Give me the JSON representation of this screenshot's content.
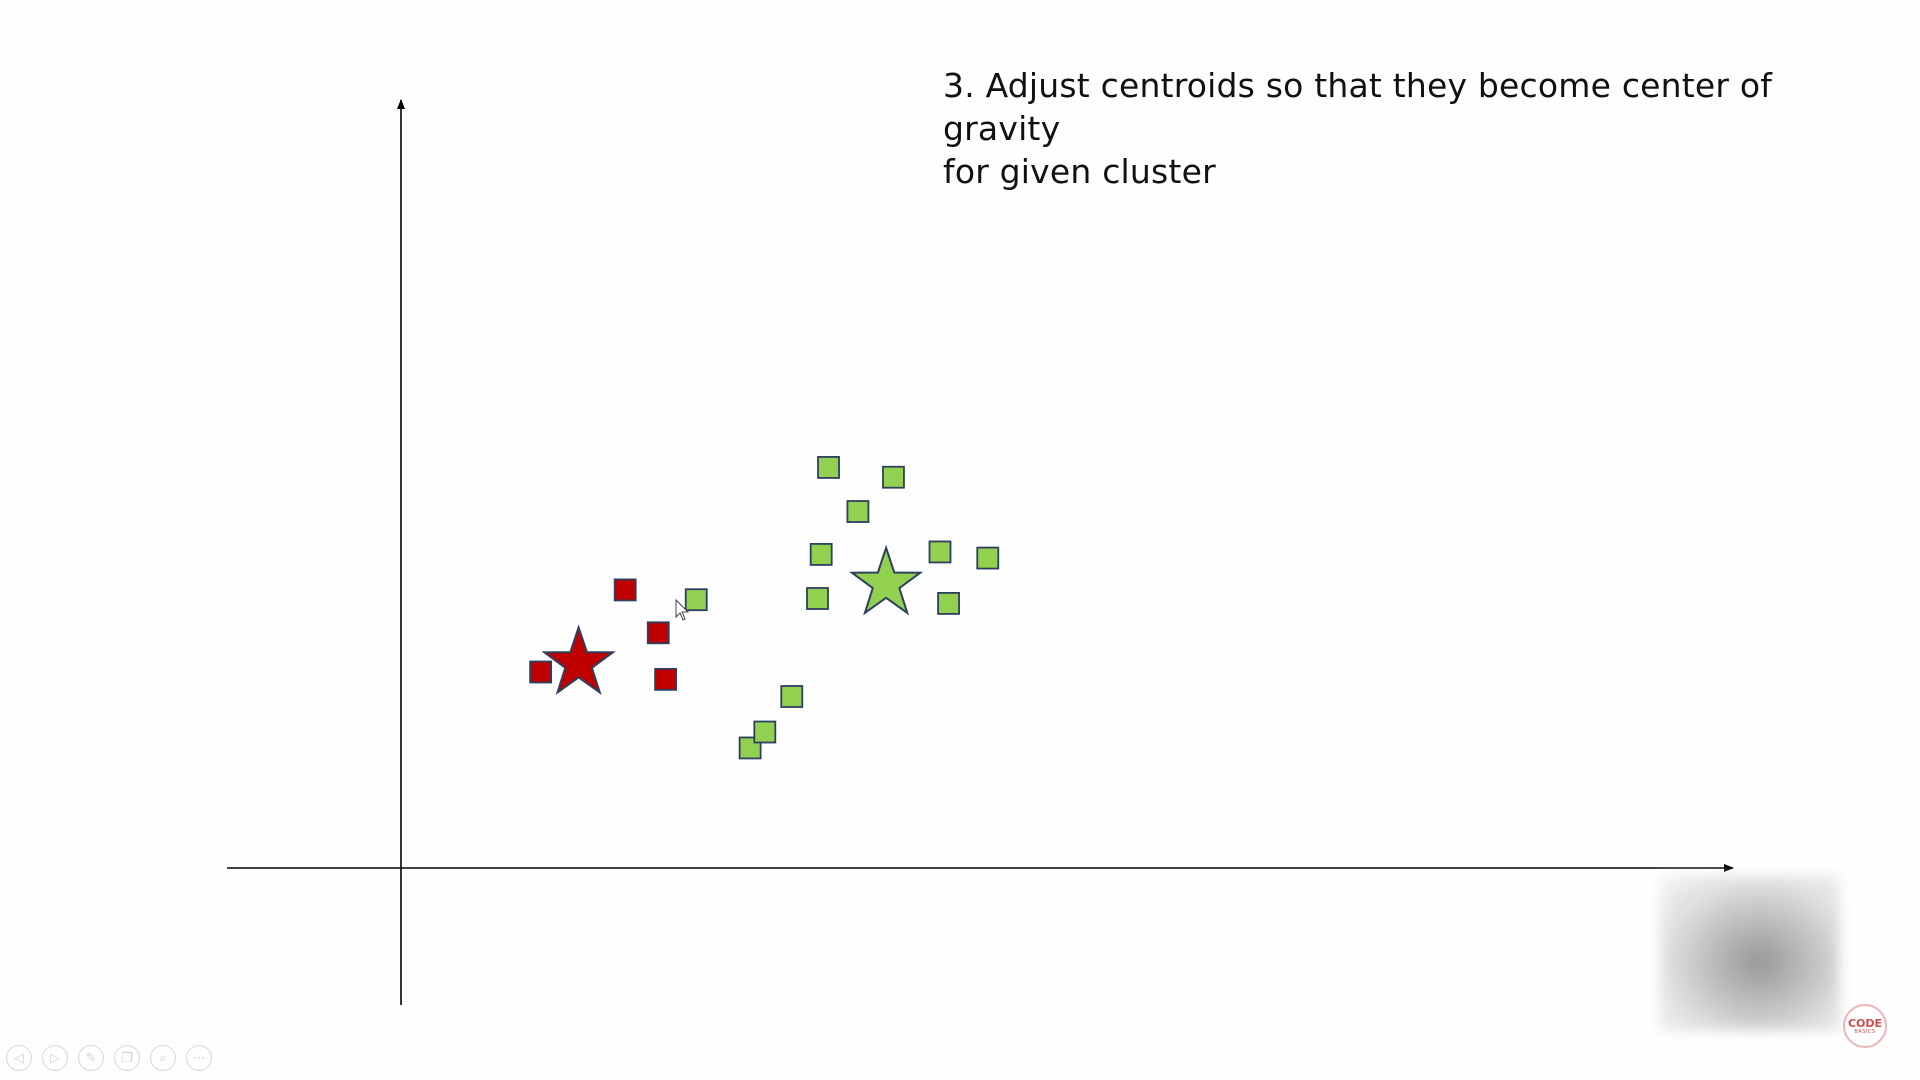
{
  "slide": {
    "title_line1": "3. Adjust centroids so that they become center of gravity",
    "title_line2": "for given cluster"
  },
  "colors": {
    "red_fill": "#c00000",
    "green_fill": "#92d050",
    "marker_stroke": "#2f3f5f",
    "axis": "#000000"
  },
  "chart_data": {
    "type": "scatter",
    "title": "",
    "xlabel": "",
    "ylabel": "",
    "xlim": [
      -100,
      750
    ],
    "ylim": [
      -75,
      425
    ],
    "grid": false,
    "series": [
      {
        "marker": "square",
        "color": "#c00000",
        "points": [
          [
            114,
            160
          ],
          [
            183,
            227
          ],
          [
            210,
            192
          ],
          [
            216,
            154
          ]
        ]
      },
      {
        "marker": "square",
        "color": "#92d050",
        "points": [
          [
            241,
            219
          ],
          [
            285,
            98
          ],
          [
            297,
            111
          ],
          [
            319,
            140
          ],
          [
            340,
            220
          ],
          [
            343,
            256
          ],
          [
            349,
            327
          ],
          [
            373,
            291
          ],
          [
            402,
            319
          ],
          [
            440,
            258
          ],
          [
            447,
            216
          ],
          [
            479,
            253
          ]
        ]
      },
      {
        "marker": "star",
        "color": "#c00000",
        "points": [
          [
            145,
            167
          ]
        ]
      },
      {
        "marker": "star",
        "color": "#92d050",
        "points": [
          [
            396,
            232
          ]
        ]
      }
    ]
  },
  "toolbar": {
    "icons": [
      "previous-icon",
      "next-icon",
      "pen-icon",
      "slides-icon",
      "zoom-icon",
      "more-icon"
    ],
    "glyphs": [
      "◁",
      "▷",
      "✎",
      "❐",
      "⌕",
      "⋯"
    ]
  },
  "logo": {
    "main": "CODE",
    "sub": "BASICS"
  }
}
